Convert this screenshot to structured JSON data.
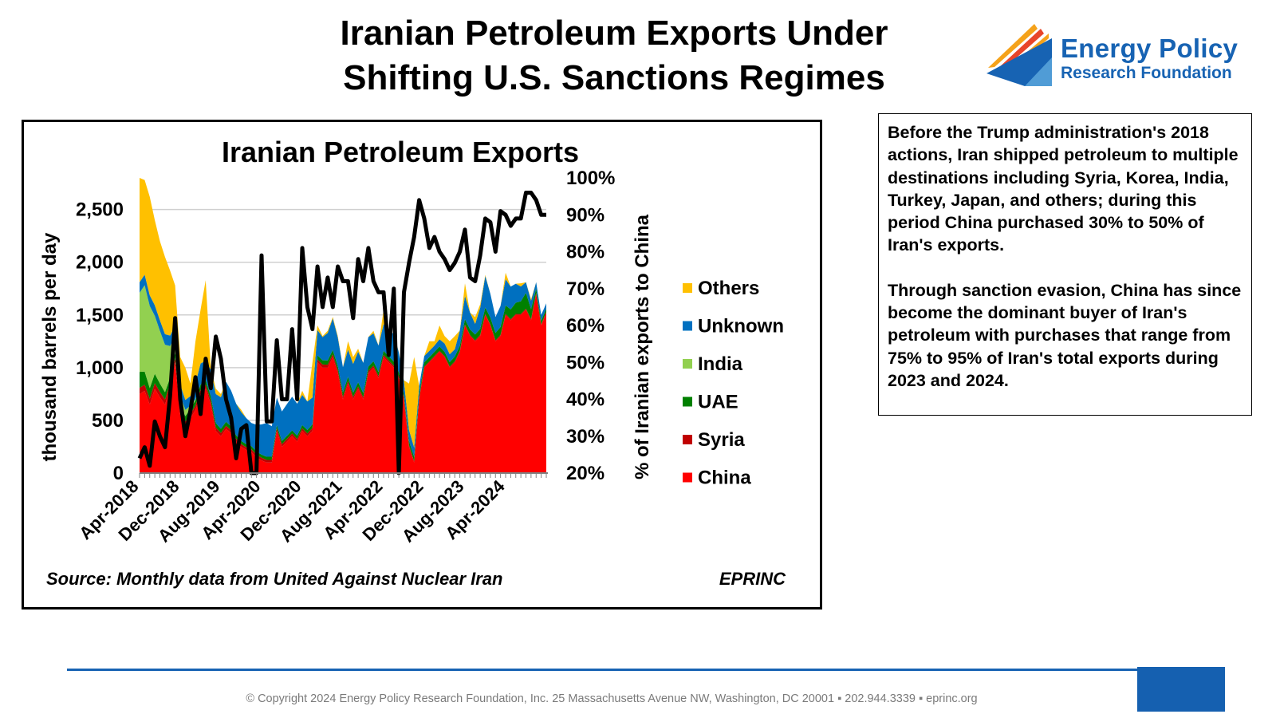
{
  "slide": {
    "title_line1": "Iranian Petroleum Exports Under",
    "title_line2": "Shifting U.S. Sanctions Regimes"
  },
  "logo": {
    "line1": "Energy Policy",
    "line2": "Research Foundation",
    "icon": "chevron-mark-icon",
    "colors": {
      "blue": "#1763b3",
      "light_blue": "#5aa6dc",
      "orange": "#f5a21a",
      "red": "#e8452a"
    }
  },
  "textbox": {
    "paragraph1": "Before the Trump administration's 2018 actions, Iran shipped petroleum to multiple destinations including Syria, Korea, India, Turkey, Japan, and others; during this period China purchased 30% to 50% of Iran's exports.",
    "paragraph2": "Through sanction evasion, China has since become the dominant buyer of Iran's petroleum with purchases that range from 75% to 95% of Iran's total exports during 2023 and 2024."
  },
  "footer": {
    "text": "© Copyright 2024 Energy Policy Research Foundation, Inc. 25 Massachusetts Avenue NW, Washington, DC 20001 ▪ 202.944.3339 ▪ eprinc.org"
  },
  "chart_data": {
    "type": "area",
    "title": "Iranian Petroleum Exports",
    "ylabel": "thousand barrels per day",
    "y2label": "% of Iranian exports to China",
    "source": "Source: Monthly data from United Against Nuclear Iran",
    "credit": "EPRINC",
    "ylim": [
      0,
      2800
    ],
    "yticks": [
      0,
      500,
      1000,
      1500,
      2000,
      2500
    ],
    "ytick_labels": [
      "0",
      "500",
      "1,000",
      "1,500",
      "2,000",
      "2,500"
    ],
    "y2lim": [
      20,
      100
    ],
    "y2ticks": [
      20,
      30,
      40,
      50,
      60,
      70,
      80,
      90,
      100
    ],
    "y2tick_labels": [
      "20%",
      "30%",
      "40%",
      "50%",
      "60%",
      "70%",
      "80%",
      "90%",
      "100%"
    ],
    "grid": true,
    "legend_position": "right",
    "x_tick_labels": [
      "Apr-2018",
      "Dec-2018",
      "Aug-2019",
      "Apr-2020",
      "Dec-2020",
      "Aug-2021",
      "Apr-2022",
      "Dec-2022",
      "Aug-2023",
      "Apr-2024"
    ],
    "x_start": "Apr-2018",
    "n_months": 81,
    "stack_order": [
      "China",
      "Syria",
      "UAE",
      "India",
      "Unknown",
      "Others"
    ],
    "legend_order": [
      "Others",
      "Unknown",
      "India",
      "UAE",
      "Syria",
      "China"
    ],
    "series_total_keypoints": [
      [
        0,
        2800
      ],
      [
        1,
        2780
      ],
      [
        2,
        2620
      ],
      [
        3,
        2400
      ],
      [
        4,
        2200
      ],
      [
        5,
        2050
      ],
      [
        6,
        1920
      ],
      [
        7,
        1780
      ],
      [
        8,
        1100
      ],
      [
        9,
        1000
      ],
      [
        10,
        850
      ],
      [
        11,
        1250
      ],
      [
        12,
        1550
      ],
      [
        13,
        1830
      ],
      [
        14,
        1000
      ],
      [
        15,
        800
      ],
      [
        16,
        750
      ],
      [
        17,
        800
      ],
      [
        18,
        700
      ],
      [
        19,
        620
      ],
      [
        20,
        600
      ],
      [
        21,
        500
      ],
      [
        22,
        450
      ],
      [
        23,
        400
      ],
      [
        24,
        400
      ],
      [
        25,
        450
      ],
      [
        26,
        380
      ],
      [
        27,
        700
      ],
      [
        28,
        450
      ],
      [
        29,
        480
      ],
      [
        30,
        700
      ],
      [
        31,
        600
      ],
      [
        32,
        780
      ],
      [
        33,
        650
      ],
      [
        34,
        1050
      ],
      [
        35,
        1400
      ],
      [
        36,
        1300
      ],
      [
        37,
        1350
      ],
      [
        38,
        1480
      ],
      [
        39,
        1300
      ],
      [
        40,
        1000
      ],
      [
        41,
        1250
      ],
      [
        42,
        1100
      ],
      [
        43,
        1180
      ],
      [
        44,
        1000
      ],
      [
        45,
        1280
      ],
      [
        46,
        1350
      ],
      [
        47,
        1200
      ],
      [
        48,
        1550
      ],
      [
        49,
        1350
      ],
      [
        50,
        1300
      ],
      [
        51,
        1150
      ],
      [
        52,
        880
      ],
      [
        53,
        850
      ],
      [
        54,
        1100
      ],
      [
        55,
        800
      ],
      [
        56,
        1100
      ],
      [
        57,
        1250
      ],
      [
        58,
        1250
      ],
      [
        59,
        1400
      ],
      [
        60,
        1300
      ],
      [
        61,
        1250
      ],
      [
        62,
        1300
      ],
      [
        63,
        1350
      ],
      [
        64,
        1800
      ],
      [
        65,
        1500
      ],
      [
        66,
        1480
      ],
      [
        67,
        1600
      ],
      [
        68,
        1880
      ],
      [
        69,
        1650
      ],
      [
        70,
        1450
      ],
      [
        71,
        1500
      ],
      [
        72,
        1900
      ],
      [
        73,
        1700
      ],
      [
        74,
        1780
      ],
      [
        75,
        1800
      ],
      [
        76,
        1780
      ],
      [
        77,
        1650
      ],
      [
        78,
        1800
      ],
      [
        79,
        1500
      ],
      [
        80,
        1600
      ]
    ],
    "series": [
      {
        "name": "China",
        "color": "#ff0000",
        "keypoints": [
          [
            0,
            750
          ],
          [
            1,
            780
          ],
          [
            2,
            650
          ],
          [
            3,
            800
          ],
          [
            4,
            720
          ],
          [
            5,
            650
          ],
          [
            6,
            800
          ],
          [
            7,
            1050
          ],
          [
            8,
            550
          ],
          [
            9,
            450
          ],
          [
            10,
            520
          ],
          [
            11,
            600
          ],
          [
            12,
            750
          ],
          [
            13,
            800
          ],
          [
            14,
            650
          ],
          [
            15,
            400
          ],
          [
            16,
            350
          ],
          [
            17,
            420
          ],
          [
            18,
            380
          ],
          [
            19,
            300
          ],
          [
            20,
            250
          ],
          [
            21,
            220
          ],
          [
            22,
            200
          ],
          [
            23,
            150
          ],
          [
            24,
            120
          ],
          [
            25,
            100
          ],
          [
            26,
            100
          ],
          [
            27,
            400
          ],
          [
            28,
            250
          ],
          [
            29,
            300
          ],
          [
            30,
            350
          ],
          [
            31,
            300
          ],
          [
            32,
            400
          ],
          [
            33,
            350
          ],
          [
            34,
            400
          ],
          [
            35,
            1050
          ],
          [
            36,
            1000
          ],
          [
            37,
            1000
          ],
          [
            38,
            1100
          ],
          [
            39,
            950
          ],
          [
            40,
            700
          ],
          [
            41,
            850
          ],
          [
            42,
            700
          ],
          [
            43,
            800
          ],
          [
            44,
            700
          ],
          [
            45,
            950
          ],
          [
            46,
            1000
          ],
          [
            47,
            900
          ],
          [
            48,
            1100
          ],
          [
            49,
            1050
          ],
          [
            50,
            1000
          ],
          [
            51,
            900
          ],
          [
            52,
            700
          ],
          [
            53,
            250
          ],
          [
            54,
            100
          ],
          [
            55,
            700
          ],
          [
            56,
            1000
          ],
          [
            57,
            1050
          ],
          [
            58,
            1100
          ],
          [
            59,
            1150
          ],
          [
            60,
            1100
          ],
          [
            61,
            1000
          ],
          [
            62,
            1050
          ],
          [
            63,
            1150
          ],
          [
            64,
            1400
          ],
          [
            65,
            1300
          ],
          [
            66,
            1250
          ],
          [
            67,
            1300
          ],
          [
            68,
            1500
          ],
          [
            69,
            1400
          ],
          [
            70,
            1250
          ],
          [
            71,
            1300
          ],
          [
            72,
            1500
          ],
          [
            73,
            1450
          ],
          [
            74,
            1500
          ],
          [
            75,
            1500
          ],
          [
            76,
            1550
          ],
          [
            77,
            1450
          ],
          [
            78,
            1700
          ],
          [
            79,
            1400
          ],
          [
            80,
            1520
          ]
        ]
      },
      {
        "name": "Syria",
        "color": "#c00000",
        "keypoints": [
          [
            0,
            60
          ],
          [
            4,
            50
          ],
          [
            8,
            40
          ],
          [
            12,
            40
          ],
          [
            16,
            30
          ],
          [
            20,
            25
          ],
          [
            24,
            25
          ],
          [
            28,
            25
          ],
          [
            32,
            25
          ],
          [
            36,
            30
          ],
          [
            40,
            25
          ],
          [
            44,
            20
          ],
          [
            48,
            20
          ],
          [
            52,
            15
          ],
          [
            56,
            10
          ],
          [
            60,
            10
          ],
          [
            64,
            10
          ],
          [
            68,
            10
          ],
          [
            72,
            10
          ],
          [
            76,
            10
          ],
          [
            80,
            10
          ]
        ]
      },
      {
        "name": "UAE",
        "color": "#008000",
        "keypoints": [
          [
            0,
            150
          ],
          [
            2,
            100
          ],
          [
            4,
            80
          ],
          [
            6,
            60
          ],
          [
            8,
            50
          ],
          [
            12,
            50
          ],
          [
            16,
            40
          ],
          [
            20,
            30
          ],
          [
            24,
            30
          ],
          [
            28,
            30
          ],
          [
            32,
            30
          ],
          [
            36,
            40
          ],
          [
            40,
            40
          ],
          [
            44,
            40
          ],
          [
            48,
            40
          ],
          [
            52,
            40
          ],
          [
            56,
            40
          ],
          [
            60,
            40
          ],
          [
            64,
            50
          ],
          [
            68,
            60
          ],
          [
            72,
            80
          ],
          [
            75,
            120
          ],
          [
            76,
            150
          ],
          [
            78,
            40
          ],
          [
            80,
            30
          ]
        ]
      },
      {
        "name": "India",
        "color": "#92d050",
        "keypoints": [
          [
            0,
            750
          ],
          [
            1,
            820
          ],
          [
            2,
            780
          ],
          [
            3,
            550
          ],
          [
            4,
            500
          ],
          [
            5,
            450
          ],
          [
            6,
            300
          ],
          [
            7,
            150
          ],
          [
            8,
            100
          ],
          [
            9,
            60
          ],
          [
            10,
            30
          ],
          [
            11,
            10
          ],
          [
            12,
            0
          ],
          [
            80,
            0
          ]
        ]
      },
      {
        "name": "Unknown",
        "color": "#0070c0",
        "keypoints": [
          [
            0,
            100
          ],
          [
            4,
            100
          ],
          [
            8,
            100
          ],
          [
            10,
            90
          ],
          [
            11,
            150
          ],
          [
            12,
            200
          ],
          [
            13,
            180
          ],
          [
            14,
            250
          ],
          [
            16,
            300
          ],
          [
            17,
            380
          ],
          [
            19,
            300
          ],
          [
            22,
            220
          ],
          [
            25,
            320
          ],
          [
            27,
            260
          ],
          [
            30,
            320
          ],
          [
            33,
            270
          ],
          [
            35,
            240
          ],
          [
            36,
            220
          ],
          [
            38,
            300
          ],
          [
            40,
            240
          ],
          [
            43,
            290
          ],
          [
            45,
            280
          ],
          [
            47,
            250
          ],
          [
            50,
            260
          ],
          [
            52,
            120
          ],
          [
            54,
            90
          ],
          [
            56,
            60
          ],
          [
            58,
            60
          ],
          [
            60,
            80
          ],
          [
            62,
            70
          ],
          [
            64,
            220
          ],
          [
            66,
            100
          ],
          [
            68,
            300
          ],
          [
            70,
            150
          ],
          [
            72,
            250
          ],
          [
            74,
            180
          ],
          [
            76,
            100
          ],
          [
            78,
            60
          ],
          [
            80,
            50
          ]
        ]
      },
      {
        "name": "Others",
        "color": "#ffc000",
        "keypoints": []
      }
    ],
    "china_share_pct_keypoints": [
      [
        0,
        24
      ],
      [
        1,
        27
      ],
      [
        2,
        22
      ],
      [
        3,
        34
      ],
      [
        4,
        30
      ],
      [
        5,
        27
      ],
      [
        6,
        41
      ],
      [
        7,
        62
      ],
      [
        8,
        40
      ],
      [
        9,
        30
      ],
      [
        10,
        37
      ],
      [
        11,
        46
      ],
      [
        12,
        36
      ],
      [
        13,
        51
      ],
      [
        14,
        43
      ],
      [
        15,
        57
      ],
      [
        16,
        51
      ],
      [
        17,
        40
      ],
      [
        18,
        35
      ],
      [
        19,
        24
      ],
      [
        20,
        32
      ],
      [
        21,
        33
      ],
      [
        22,
        19
      ],
      [
        23,
        16
      ],
      [
        24,
        79
      ],
      [
        25,
        34
      ],
      [
        26,
        34
      ],
      [
        27,
        56
      ],
      [
        28,
        40
      ],
      [
        29,
        40
      ],
      [
        30,
        59
      ],
      [
        31,
        40
      ],
      [
        32,
        81
      ],
      [
        33,
        65
      ],
      [
        34,
        59
      ],
      [
        35,
        76
      ],
      [
        36,
        65
      ],
      [
        37,
        73
      ],
      [
        38,
        65
      ],
      [
        39,
        76
      ],
      [
        40,
        72
      ],
      [
        41,
        72
      ],
      [
        42,
        62
      ],
      [
        43,
        78
      ],
      [
        44,
        72
      ],
      [
        45,
        81
      ],
      [
        46,
        72
      ],
      [
        47,
        69
      ],
      [
        48,
        69
      ],
      [
        49,
        52
      ],
      [
        50,
        70
      ],
      [
        51,
        10
      ],
      [
        52,
        69
      ],
      [
        53,
        77
      ],
      [
        54,
        84
      ],
      [
        55,
        94
      ],
      [
        56,
        89
      ],
      [
        57,
        81
      ],
      [
        58,
        84
      ],
      [
        59,
        80
      ],
      [
        60,
        78
      ],
      [
        61,
        75
      ],
      [
        62,
        77
      ],
      [
        63,
        80
      ],
      [
        64,
        86
      ],
      [
        65,
        73
      ],
      [
        66,
        72
      ],
      [
        67,
        79
      ],
      [
        68,
        89
      ],
      [
        69,
        88
      ],
      [
        70,
        80
      ],
      [
        71,
        91
      ],
      [
        72,
        90
      ],
      [
        73,
        87
      ],
      [
        74,
        89
      ],
      [
        75,
        89
      ],
      [
        76,
        96
      ],
      [
        77,
        96
      ],
      [
        78,
        94
      ],
      [
        79,
        90
      ],
      [
        80,
        90
      ]
    ]
  }
}
